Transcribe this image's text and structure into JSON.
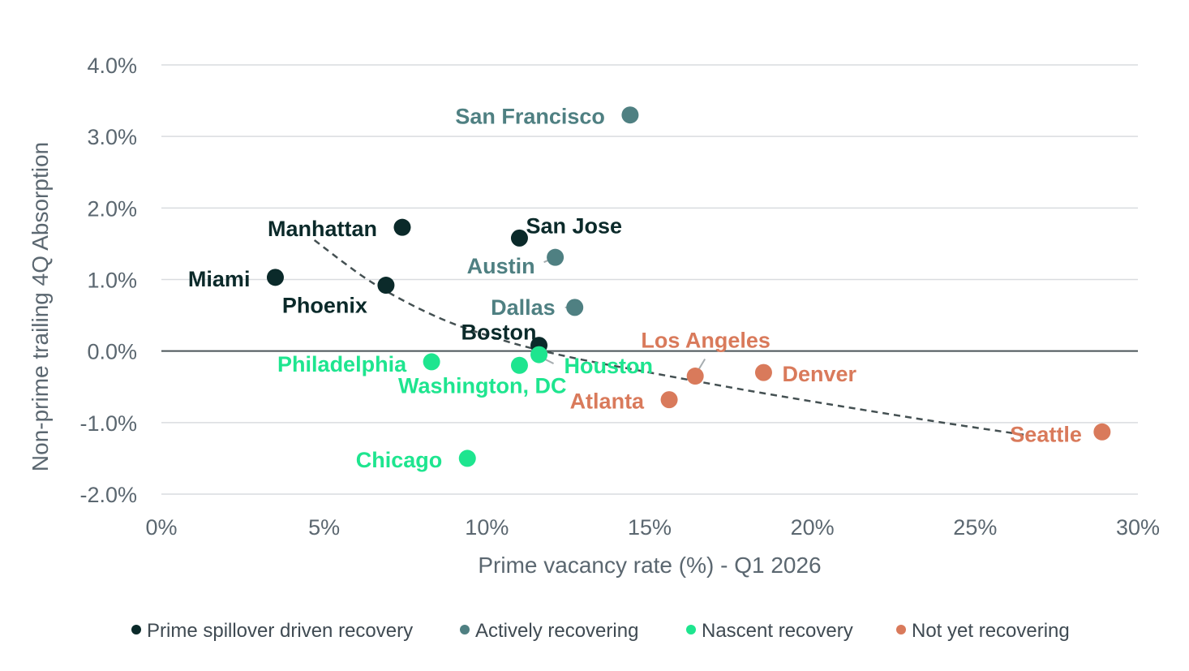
{
  "chart_data": {
    "type": "scatter",
    "title": "",
    "xlabel": "Prime vacancy rate (%) - Q1 2026",
    "ylabel": "Non-prime trailing 4Q Absorption",
    "xlim": [
      0,
      30
    ],
    "ylim": [
      -2.0,
      4.0
    ],
    "x_ticks": [
      0,
      5,
      10,
      15,
      20,
      25,
      30
    ],
    "x_tick_labels": [
      "0%",
      "5%",
      "10%",
      "15%",
      "20%",
      "25%",
      "30%"
    ],
    "y_ticks": [
      -2.0,
      -1.0,
      0.0,
      1.0,
      2.0,
      3.0,
      4.0
    ],
    "y_tick_labels": [
      "-2.0%",
      "-1.0%",
      "0.0%",
      "1.0%",
      "2.0%",
      "3.0%",
      "4.0%"
    ],
    "grid": "horizontal",
    "legend_position": "bottom",
    "series": [
      {
        "name": "Prime spillover driven recovery",
        "color": "#0b2a2a",
        "points": [
          {
            "label": "Manhattan",
            "x": 7.4,
            "y": 1.73
          },
          {
            "label": "San Jose",
            "x": 11.0,
            "y": 1.58
          },
          {
            "label": "Miami",
            "x": 3.5,
            "y": 1.03
          },
          {
            "label": "Phoenix",
            "x": 6.9,
            "y": 0.92
          },
          {
            "label": "Boston",
            "x": 11.6,
            "y": 0.08
          }
        ]
      },
      {
        "name": "Actively recovering",
        "color": "#4f8082",
        "points": [
          {
            "label": "San Francisco",
            "x": 14.4,
            "y": 3.3
          },
          {
            "label": "Austin",
            "x": 12.1,
            "y": 1.31
          },
          {
            "label": "Dallas",
            "x": 12.7,
            "y": 0.61
          }
        ]
      },
      {
        "name": "Nascent recovery",
        "color": "#1ee58f",
        "points": [
          {
            "label": "Philadelphia",
            "x": 8.3,
            "y": -0.15
          },
          {
            "label": "Washington, DC",
            "x": 11.0,
            "y": -0.2
          },
          {
            "label": "Houston",
            "x": 11.6,
            "y": -0.05
          },
          {
            "label": "Chicago",
            "x": 9.4,
            "y": -1.5
          }
        ]
      },
      {
        "name": "Not yet recovering",
        "color": "#d97a5b",
        "points": [
          {
            "label": "Los Angeles",
            "x": 16.4,
            "y": -0.35
          },
          {
            "label": "Denver",
            "x": 18.5,
            "y": -0.3
          },
          {
            "label": "Atlanta",
            "x": 15.6,
            "y": -0.68
          },
          {
            "label": "Seattle",
            "x": 28.9,
            "y": -1.13
          }
        ]
      }
    ],
    "trendline": {
      "style": "dashed",
      "color": "#445052",
      "points": [
        [
          4.7,
          1.55
        ],
        [
          6.5,
          0.95
        ],
        [
          8.5,
          0.47
        ],
        [
          10.5,
          0.15
        ],
        [
          12.5,
          -0.08
        ],
        [
          15,
          -0.3
        ],
        [
          18,
          -0.55
        ],
        [
          21,
          -0.78
        ],
        [
          24,
          -1.0
        ],
        [
          26.5,
          -1.17
        ]
      ]
    }
  }
}
